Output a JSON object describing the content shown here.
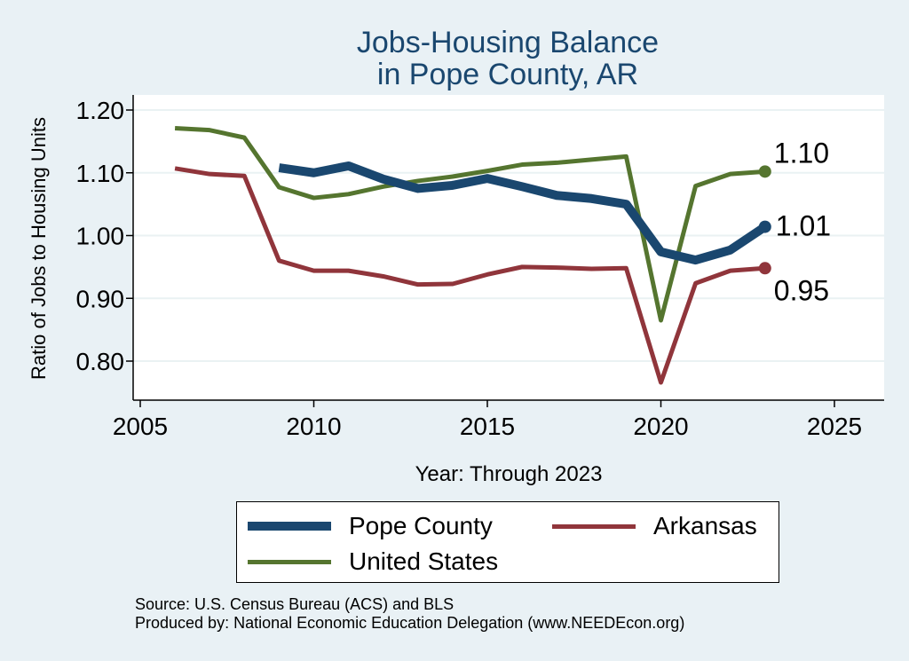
{
  "chart_data": {
    "type": "line",
    "title_lines": [
      "Jobs-Housing Balance",
      "in Pope County, AR"
    ],
    "xlabel": "Year: Through 2023",
    "ylabel": "Ratio of Jobs to Housing Units",
    "xlim": [
      2005,
      2027
    ],
    "ylim": [
      0.74,
      1.24
    ],
    "x_ticks": [
      "2005",
      "2010",
      "2015",
      "2020",
      "2025"
    ],
    "y_ticks": [
      "0.80",
      "0.90",
      "1.00",
      "1.10",
      "1.20"
    ],
    "grid": true,
    "series": [
      {
        "name": "Pope County",
        "color": "#1a476f",
        "x": [
          2009,
          2010,
          2011,
          2012,
          2013,
          2014,
          2015,
          2016,
          2017,
          2018,
          2019,
          2020,
          2021,
          2022,
          2023
        ],
        "y": [
          1.108,
          1.1,
          1.111,
          1.09,
          1.075,
          1.08,
          1.091,
          1.078,
          1.064,
          1.059,
          1.05,
          0.974,
          0.961,
          0.977,
          1.014
        ],
        "end_label": "1.01"
      },
      {
        "name": "Arkansas",
        "color": "#90353b",
        "x": [
          2006,
          2007,
          2008,
          2009,
          2010,
          2011,
          2012,
          2013,
          2014,
          2015,
          2016,
          2017,
          2018,
          2019,
          2020,
          2021,
          2022,
          2023
        ],
        "y": [
          1.107,
          1.098,
          1.095,
          0.96,
          0.944,
          0.944,
          0.935,
          0.922,
          0.923,
          0.938,
          0.95,
          0.949,
          0.947,
          0.948,
          0.766,
          0.924,
          0.944,
          0.948
        ],
        "end_label": "0.95"
      },
      {
        "name": "United States",
        "color": "#55752f",
        "x": [
          2006,
          2007,
          2008,
          2009,
          2010,
          2011,
          2012,
          2013,
          2014,
          2015,
          2016,
          2017,
          2018,
          2019,
          2020,
          2021,
          2022,
          2023
        ],
        "y": [
          1.171,
          1.168,
          1.156,
          1.077,
          1.06,
          1.066,
          1.078,
          1.087,
          1.094,
          1.103,
          1.113,
          1.116,
          1.121,
          1.126,
          0.865,
          1.079,
          1.098,
          1.102
        ],
        "end_label": "1.10"
      }
    ]
  },
  "legend": {
    "items": [
      {
        "label": "Pope County",
        "color": "#1a476f"
      },
      {
        "label": "Arkansas",
        "color": "#90353b"
      },
      {
        "label": "United States",
        "color": "#55752f"
      }
    ]
  },
  "source": {
    "line1": "Source: U.S. Census Bureau (ACS) and BLS",
    "line2": "Produced by: National Economic Education Delegation (www.NEEDEcon.org)"
  }
}
